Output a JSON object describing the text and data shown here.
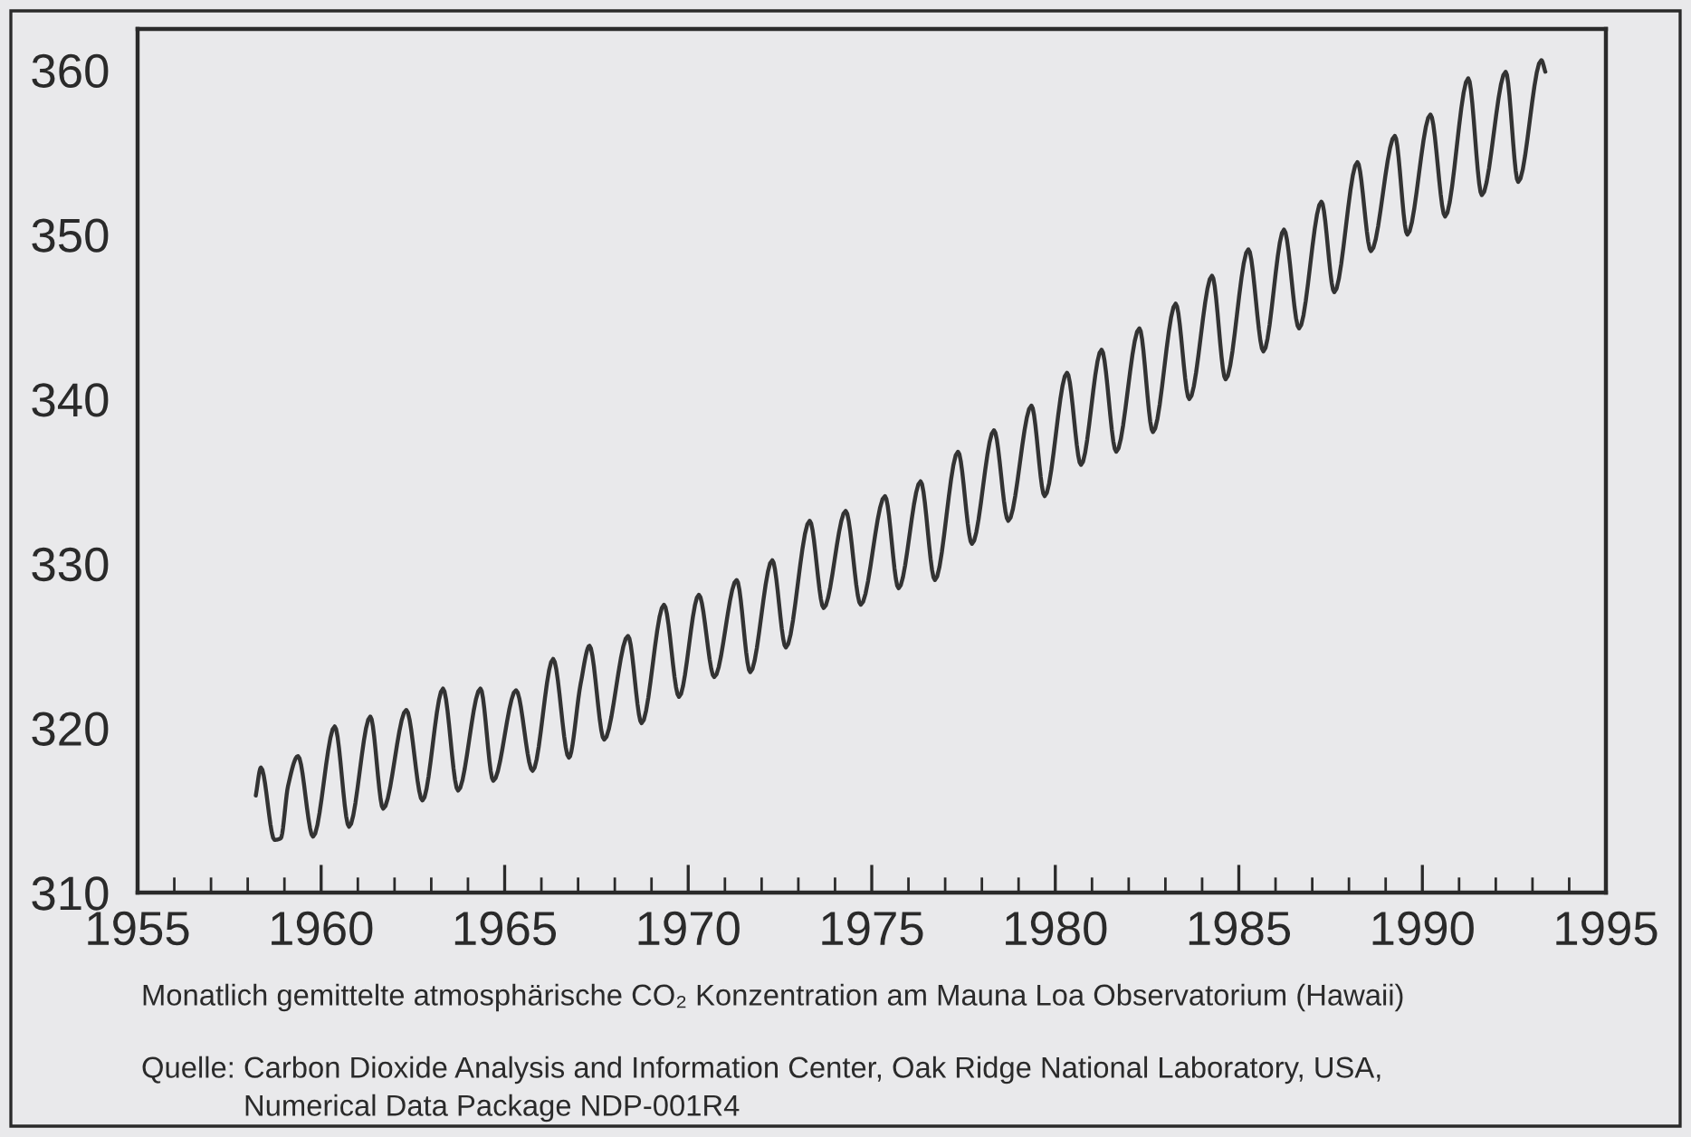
{
  "chart_data": {
    "type": "line",
    "x": [
      1958.22,
      1958.36,
      1958.73,
      1958.9,
      1959.1,
      1959.37,
      1959.78,
      1960.37,
      1960.76,
      1961.34,
      1961.69,
      1962.32,
      1962.76,
      1963.32,
      1963.73,
      1964.34,
      1964.69,
      1965.31,
      1965.76,
      1966.32,
      1966.75,
      1967.07,
      1967.31,
      1967.71,
      1968.36,
      1968.73,
      1969.34,
      1969.75,
      1970.29,
      1970.71,
      1971.32,
      1971.69,
      1972.29,
      1972.66,
      1973.31,
      1973.69,
      1974.29,
      1974.7,
      1975.36,
      1975.73,
      1976.33,
      1976.72,
      1977.35,
      1977.73,
      1978.33,
      1978.72,
      1979.35,
      1979.71,
      1980.32,
      1980.7,
      1981.26,
      1981.66,
      1982.29,
      1982.66,
      1983.28,
      1983.65,
      1984.27,
      1984.64,
      1985.26,
      1985.67,
      1986.23,
      1986.64,
      1987.25,
      1987.6,
      1988.23,
      1988.6,
      1989.25,
      1989.59,
      1990.22,
      1990.62,
      1991.25,
      1991.62,
      1992.27,
      1992.61,
      1993.24,
      1993.35
    ],
    "series": [
      {
        "color": "#333333",
        "values": [
          315.9,
          317.6,
          313.2,
          313.3,
          316.5,
          318.3,
          313.4,
          320.1,
          314.0,
          320.7,
          315.1,
          321.1,
          315.6,
          322.4,
          316.2,
          322.4,
          316.8,
          322.3,
          317.4,
          324.2,
          318.2,
          322.7,
          325.0,
          319.3,
          325.6,
          320.3,
          327.5,
          321.9,
          328.1,
          323.1,
          329.0,
          323.4,
          330.2,
          324.9,
          332.6,
          327.3,
          333.2,
          327.5,
          334.1,
          328.5,
          335.0,
          329.0,
          336.8,
          331.2,
          338.1,
          332.6,
          339.6,
          334.1,
          341.6,
          336.0,
          343.0,
          336.8,
          344.3,
          338.0,
          345.8,
          340.0,
          347.5,
          341.2,
          349.1,
          342.9,
          350.3,
          344.3,
          352.0,
          346.5,
          354.4,
          349.0,
          356.0,
          350.0,
          357.3,
          351.1,
          359.5,
          352.4,
          359.9,
          353.2,
          360.6,
          359.9
        ]
      }
    ],
    "xlim": [
      1955,
      1995
    ],
    "xticks": [
      1955,
      {
        "value": 1956,
        "label": null
      },
      {
        "value": 1957,
        "label": null
      },
      {
        "value": 1958,
        "label": null
      },
      {
        "value": 1959,
        "label": null
      },
      1960,
      {
        "value": 1961,
        "label": null
      },
      {
        "value": 1962,
        "label": null
      },
      {
        "value": 1963,
        "label": null
      },
      {
        "value": 1964,
        "label": null
      },
      1965,
      {
        "value": 1966,
        "label": null
      },
      {
        "value": 1967,
        "label": null
      },
      {
        "value": 1968,
        "label": null
      },
      {
        "value": 1969,
        "label": null
      },
      1970,
      {
        "value": 1971,
        "label": null
      },
      {
        "value": 1972,
        "label": null
      },
      {
        "value": 1973,
        "label": null
      },
      {
        "value": 1974,
        "label": null
      },
      1975,
      {
        "value": 1976,
        "label": null
      },
      {
        "value": 1977,
        "label": null
      },
      {
        "value": 1978,
        "label": null
      },
      {
        "value": 1979,
        "label": null
      },
      1980,
      {
        "value": 1981,
        "label": null
      },
      {
        "value": 1982,
        "label": null
      },
      {
        "value": 1983,
        "label": null
      },
      {
        "value": 1984,
        "label": null
      },
      1985,
      {
        "value": 1986,
        "label": null
      },
      {
        "value": 1987,
        "label": null
      },
      {
        "value": 1988,
        "label": null
      },
      {
        "value": 1989,
        "label": null
      },
      1990,
      {
        "value": 1991,
        "label": null
      },
      {
        "value": 1992,
        "label": null
      },
      {
        "value": 1993,
        "label": null
      },
      {
        "value": 1994,
        "label": null
      },
      1995
    ],
    "ylim": [
      310,
      362.5
    ],
    "yticks": [
      310,
      320,
      330,
      340,
      350,
      360
    ],
    "annotations": [
      "Monatlich gemittelte atmosphärische CO₂ Konzentration am Mauna Loa Observatorium (Hawaii)",
      "Quelle: Carbon Dioxide Analysis and Information Center, Oak Ridge National Laboratory, USA,\nNumerical Data Package NDP-001R4"
    ]
  }
}
